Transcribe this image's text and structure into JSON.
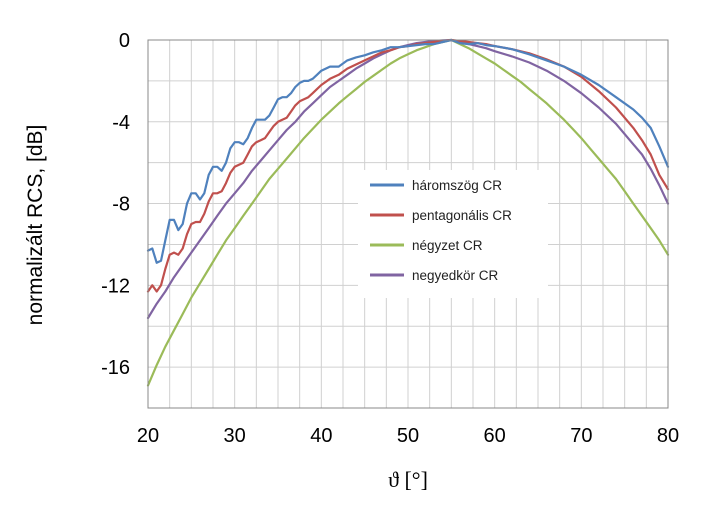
{
  "chart_data": {
    "type": "line",
    "title": "",
    "xlabel": "ϑ [°]",
    "ylabel": "normalizált RCS, [dB]",
    "xlim": [
      20,
      80
    ],
    "ylim": [
      -18,
      0
    ],
    "xticks": [
      20,
      30,
      40,
      50,
      60,
      70,
      80
    ],
    "yticks": [
      0,
      -4,
      -8,
      -12,
      -16
    ],
    "grid": true,
    "legend_position": "center-right",
    "series": [
      {
        "name": "háromszög CR",
        "color": "#4f81bd",
        "points": [
          [
            20,
            -10.3
          ],
          [
            20.5,
            -10.2
          ],
          [
            21,
            -10.9
          ],
          [
            21.5,
            -10.8
          ],
          [
            22,
            -9.8
          ],
          [
            22.5,
            -8.8
          ],
          [
            23,
            -8.8
          ],
          [
            23.5,
            -9.3
          ],
          [
            24,
            -9.0
          ],
          [
            24.5,
            -8.0
          ],
          [
            25,
            -7.5
          ],
          [
            25.5,
            -7.5
          ],
          [
            26,
            -7.8
          ],
          [
            26.5,
            -7.5
          ],
          [
            27,
            -6.6
          ],
          [
            27.5,
            -6.2
          ],
          [
            28,
            -6.2
          ],
          [
            28.5,
            -6.4
          ],
          [
            29,
            -6.0
          ],
          [
            29.5,
            -5.3
          ],
          [
            30,
            -5.0
          ],
          [
            30.5,
            -5.0
          ],
          [
            31,
            -5.1
          ],
          [
            31.5,
            -4.8
          ],
          [
            32,
            -4.3
          ],
          [
            32.5,
            -3.9
          ],
          [
            33,
            -3.9
          ],
          [
            33.5,
            -3.9
          ],
          [
            34,
            -3.7
          ],
          [
            34.5,
            -3.3
          ],
          [
            35,
            -2.9
          ],
          [
            35.5,
            -2.8
          ],
          [
            36,
            -2.8
          ],
          [
            36.5,
            -2.6
          ],
          [
            37,
            -2.3
          ],
          [
            37.5,
            -2.1
          ],
          [
            38,
            -2.0
          ],
          [
            38.5,
            -2.0
          ],
          [
            39,
            -1.9
          ],
          [
            39.5,
            -1.7
          ],
          [
            40,
            -1.5
          ],
          [
            41,
            -1.3
          ],
          [
            42,
            -1.3
          ],
          [
            43,
            -1.0
          ],
          [
            44,
            -0.85
          ],
          [
            45,
            -0.75
          ],
          [
            46,
            -0.6
          ],
          [
            47,
            -0.5
          ],
          [
            48,
            -0.35
          ],
          [
            49,
            -0.35
          ],
          [
            50,
            -0.3
          ],
          [
            51,
            -0.25
          ],
          [
            52,
            -0.2
          ],
          [
            53,
            -0.2
          ],
          [
            54,
            -0.1
          ],
          [
            55,
            0
          ],
          [
            56,
            -0.15
          ],
          [
            57,
            -0.2
          ],
          [
            58,
            -0.15
          ],
          [
            59,
            -0.25
          ],
          [
            60,
            -0.3
          ],
          [
            62,
            -0.45
          ],
          [
            64,
            -0.7
          ],
          [
            66,
            -1.0
          ],
          [
            68,
            -1.3
          ],
          [
            70,
            -1.7
          ],
          [
            72,
            -2.2
          ],
          [
            74,
            -2.8
          ],
          [
            76,
            -3.4
          ],
          [
            77,
            -3.8
          ],
          [
            78,
            -4.3
          ],
          [
            79,
            -5.2
          ],
          [
            80,
            -6.2
          ]
        ]
      },
      {
        "name": "pentagonális CR",
        "color": "#c0504d",
        "points": [
          [
            20,
            -12.3
          ],
          [
            20.5,
            -12.0
          ],
          [
            21,
            -12.3
          ],
          [
            21.5,
            -12.0
          ],
          [
            22,
            -11.2
          ],
          [
            22.5,
            -10.5
          ],
          [
            23,
            -10.4
          ],
          [
            23.5,
            -10.5
          ],
          [
            24,
            -10.2
          ],
          [
            24.5,
            -9.5
          ],
          [
            25,
            -9.0
          ],
          [
            25.5,
            -8.9
          ],
          [
            26,
            -8.9
          ],
          [
            26.5,
            -8.5
          ],
          [
            27,
            -7.9
          ],
          [
            27.5,
            -7.5
          ],
          [
            28,
            -7.5
          ],
          [
            28.5,
            -7.4
          ],
          [
            29,
            -7.0
          ],
          [
            29.5,
            -6.5
          ],
          [
            30,
            -6.2
          ],
          [
            30.5,
            -6.1
          ],
          [
            31,
            -6.0
          ],
          [
            31.5,
            -5.6
          ],
          [
            32,
            -5.2
          ],
          [
            32.5,
            -5.0
          ],
          [
            33,
            -4.9
          ],
          [
            33.5,
            -4.8
          ],
          [
            34,
            -4.5
          ],
          [
            34.5,
            -4.2
          ],
          [
            35,
            -4.0
          ],
          [
            35.5,
            -3.9
          ],
          [
            36,
            -3.8
          ],
          [
            36.5,
            -3.5
          ],
          [
            37,
            -3.2
          ],
          [
            37.5,
            -3.0
          ],
          [
            38,
            -2.9
          ],
          [
            38.5,
            -2.8
          ],
          [
            39,
            -2.6
          ],
          [
            39.5,
            -2.4
          ],
          [
            40,
            -2.2
          ],
          [
            41,
            -1.9
          ],
          [
            42,
            -1.7
          ],
          [
            43,
            -1.4
          ],
          [
            44,
            -1.2
          ],
          [
            45,
            -1.0
          ],
          [
            46,
            -0.8
          ],
          [
            47,
            -0.6
          ],
          [
            48,
            -0.5
          ],
          [
            49,
            -0.35
          ],
          [
            50,
            -0.3
          ],
          [
            51,
            -0.2
          ],
          [
            52,
            -0.15
          ],
          [
            53,
            -0.1
          ],
          [
            54,
            -0.05
          ],
          [
            55,
            0
          ],
          [
            56,
            -0.05
          ],
          [
            57,
            -0.1
          ],
          [
            58,
            -0.15
          ],
          [
            59,
            -0.2
          ],
          [
            60,
            -0.3
          ],
          [
            62,
            -0.45
          ],
          [
            64,
            -0.65
          ],
          [
            66,
            -0.95
          ],
          [
            68,
            -1.3
          ],
          [
            70,
            -1.8
          ],
          [
            72,
            -2.5
          ],
          [
            74,
            -3.3
          ],
          [
            76,
            -4.3
          ],
          [
            77,
            -4.9
          ],
          [
            78,
            -5.6
          ],
          [
            79,
            -6.6
          ],
          [
            80,
            -7.3
          ]
        ]
      },
      {
        "name": "négyzet CR",
        "color": "#9bbb59",
        "points": [
          [
            20,
            -16.9
          ],
          [
            21,
            -15.9
          ],
          [
            22,
            -15.0
          ],
          [
            23,
            -14.2
          ],
          [
            24,
            -13.4
          ],
          [
            25,
            -12.6
          ],
          [
            26,
            -11.9
          ],
          [
            27,
            -11.2
          ],
          [
            28,
            -10.5
          ],
          [
            29,
            -9.8
          ],
          [
            30,
            -9.2
          ],
          [
            31,
            -8.6
          ],
          [
            32,
            -8.0
          ],
          [
            33,
            -7.4
          ],
          [
            34,
            -6.8
          ],
          [
            35,
            -6.3
          ],
          [
            36,
            -5.8
          ],
          [
            37,
            -5.3
          ],
          [
            38,
            -4.8
          ],
          [
            39,
            -4.35
          ],
          [
            40,
            -3.9
          ],
          [
            41,
            -3.5
          ],
          [
            42,
            -3.1
          ],
          [
            43,
            -2.75
          ],
          [
            44,
            -2.4
          ],
          [
            45,
            -2.05
          ],
          [
            46,
            -1.75
          ],
          [
            47,
            -1.45
          ],
          [
            48,
            -1.15
          ],
          [
            49,
            -0.9
          ],
          [
            50,
            -0.7
          ],
          [
            51,
            -0.5
          ],
          [
            52,
            -0.35
          ],
          [
            53,
            -0.2
          ],
          [
            54,
            -0.1
          ],
          [
            55,
            0
          ],
          [
            56,
            -0.2
          ],
          [
            57,
            -0.4
          ],
          [
            58,
            -0.65
          ],
          [
            59,
            -0.9
          ],
          [
            60,
            -1.15
          ],
          [
            61,
            -1.45
          ],
          [
            62,
            -1.75
          ],
          [
            63,
            -2.05
          ],
          [
            64,
            -2.4
          ],
          [
            65,
            -2.75
          ],
          [
            66,
            -3.1
          ],
          [
            67,
            -3.5
          ],
          [
            68,
            -3.9
          ],
          [
            69,
            -4.35
          ],
          [
            70,
            -4.8
          ],
          [
            71,
            -5.3
          ],
          [
            72,
            -5.8
          ],
          [
            73,
            -6.3
          ],
          [
            74,
            -6.8
          ],
          [
            75,
            -7.4
          ],
          [
            76,
            -8.0
          ],
          [
            77,
            -8.6
          ],
          [
            78,
            -9.2
          ],
          [
            79,
            -9.8
          ],
          [
            80,
            -10.5
          ]
        ]
      },
      {
        "name": "negyedkör CR",
        "color": "#8064a2",
        "points": [
          [
            20,
            -13.6
          ],
          [
            21,
            -12.9
          ],
          [
            22,
            -12.3
          ],
          [
            23,
            -11.6
          ],
          [
            24,
            -11.0
          ],
          [
            25,
            -10.4
          ],
          [
            26,
            -9.8
          ],
          [
            27,
            -9.2
          ],
          [
            28,
            -8.6
          ],
          [
            29,
            -8.0
          ],
          [
            30,
            -7.5
          ],
          [
            31,
            -7.0
          ],
          [
            32,
            -6.4
          ],
          [
            33,
            -5.9
          ],
          [
            34,
            -5.4
          ],
          [
            35,
            -4.9
          ],
          [
            36,
            -4.4
          ],
          [
            37,
            -4.0
          ],
          [
            38,
            -3.5
          ],
          [
            39,
            -3.1
          ],
          [
            40,
            -2.7
          ],
          [
            41,
            -2.3
          ],
          [
            42,
            -2.0
          ],
          [
            43,
            -1.7
          ],
          [
            44,
            -1.4
          ],
          [
            45,
            -1.15
          ],
          [
            46,
            -0.9
          ],
          [
            47,
            -0.7
          ],
          [
            48,
            -0.5
          ],
          [
            49,
            -0.35
          ],
          [
            50,
            -0.25
          ],
          [
            51,
            -0.15
          ],
          [
            52,
            -0.1
          ],
          [
            53,
            -0.05
          ],
          [
            54,
            -0.02
          ],
          [
            55,
            0
          ],
          [
            56,
            -0.1
          ],
          [
            57,
            -0.2
          ],
          [
            58,
            -0.3
          ],
          [
            59,
            -0.4
          ],
          [
            60,
            -0.55
          ],
          [
            62,
            -0.8
          ],
          [
            64,
            -1.1
          ],
          [
            66,
            -1.5
          ],
          [
            68,
            -2.0
          ],
          [
            70,
            -2.6
          ],
          [
            72,
            -3.3
          ],
          [
            74,
            -4.1
          ],
          [
            76,
            -5.1
          ],
          [
            77,
            -5.6
          ],
          [
            78,
            -6.3
          ],
          [
            79,
            -7.1
          ],
          [
            80,
            -8.0
          ]
        ]
      }
    ]
  }
}
